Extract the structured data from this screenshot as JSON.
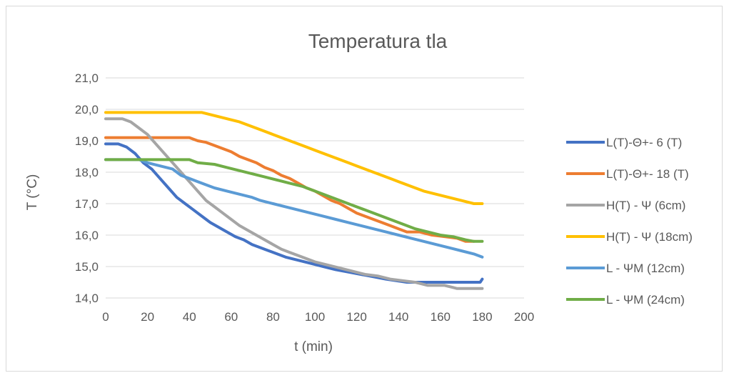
{
  "chart_data": {
    "type": "line",
    "title": "Temperatura tla",
    "xlabel": "t (min)",
    "ylabel": "T (°C)",
    "xlim": [
      0,
      200
    ],
    "ylim": [
      14.0,
      21.0
    ],
    "x_ticks": [
      "0",
      "20",
      "40",
      "60",
      "80",
      "100",
      "120",
      "140",
      "160",
      "180",
      "200"
    ],
    "y_ticks": [
      "14,0",
      "15,0",
      "16,0",
      "17,0",
      "18,0",
      "19,0",
      "20,0",
      "21,0"
    ],
    "grid": "horizontal",
    "legend_position": "right",
    "series": [
      {
        "name": "L(T)-Θ+- 6 (T)",
        "color": "#4472C4",
        "points": [
          [
            0,
            18.9
          ],
          [
            6,
            18.9
          ],
          [
            10,
            18.8
          ],
          [
            14,
            18.6
          ],
          [
            18,
            18.3
          ],
          [
            22,
            18.1
          ],
          [
            26,
            17.8
          ],
          [
            30,
            17.5
          ],
          [
            34,
            17.2
          ],
          [
            38,
            17.0
          ],
          [
            42,
            16.8
          ],
          [
            46,
            16.6
          ],
          [
            50,
            16.4
          ],
          [
            54,
            16.25
          ],
          [
            58,
            16.1
          ],
          [
            62,
            15.95
          ],
          [
            66,
            15.85
          ],
          [
            70,
            15.7
          ],
          [
            74,
            15.6
          ],
          [
            78,
            15.5
          ],
          [
            82,
            15.4
          ],
          [
            86,
            15.3
          ],
          [
            92,
            15.2
          ],
          [
            98,
            15.1
          ],
          [
            104,
            15.0
          ],
          [
            110,
            14.9
          ],
          [
            118,
            14.8
          ],
          [
            126,
            14.7
          ],
          [
            134,
            14.6
          ],
          [
            144,
            14.5
          ],
          [
            170,
            14.5
          ],
          [
            179,
            14.5
          ],
          [
            180,
            14.6
          ]
        ]
      },
      {
        "name": "L(T)-Θ+- 18 (T)",
        "color": "#ED7D31",
        "points": [
          [
            0,
            19.1
          ],
          [
            40,
            19.1
          ],
          [
            44,
            19.0
          ],
          [
            48,
            18.95
          ],
          [
            52,
            18.85
          ],
          [
            56,
            18.75
          ],
          [
            60,
            18.65
          ],
          [
            64,
            18.5
          ],
          [
            68,
            18.4
          ],
          [
            72,
            18.3
          ],
          [
            76,
            18.15
          ],
          [
            80,
            18.05
          ],
          [
            84,
            17.9
          ],
          [
            88,
            17.8
          ],
          [
            92,
            17.65
          ],
          [
            96,
            17.5
          ],
          [
            100,
            17.4
          ],
          [
            104,
            17.25
          ],
          [
            108,
            17.1
          ],
          [
            112,
            17.0
          ],
          [
            116,
            16.85
          ],
          [
            120,
            16.7
          ],
          [
            124,
            16.6
          ],
          [
            128,
            16.5
          ],
          [
            132,
            16.4
          ],
          [
            136,
            16.3
          ],
          [
            140,
            16.2
          ],
          [
            144,
            16.1
          ],
          [
            150,
            16.1
          ],
          [
            156,
            16.0
          ],
          [
            162,
            15.95
          ],
          [
            168,
            15.9
          ],
          [
            172,
            15.8
          ],
          [
            176,
            15.8
          ]
        ]
      },
      {
        "name": "H(T) - Ψ (6cm)",
        "color": "#A5A5A5",
        "points": [
          [
            0,
            19.7
          ],
          [
            8,
            19.7
          ],
          [
            12,
            19.6
          ],
          [
            16,
            19.4
          ],
          [
            20,
            19.2
          ],
          [
            24,
            18.9
          ],
          [
            28,
            18.6
          ],
          [
            32,
            18.3
          ],
          [
            36,
            18.0
          ],
          [
            40,
            17.7
          ],
          [
            44,
            17.4
          ],
          [
            48,
            17.1
          ],
          [
            52,
            16.9
          ],
          [
            56,
            16.7
          ],
          [
            60,
            16.5
          ],
          [
            64,
            16.3
          ],
          [
            68,
            16.15
          ],
          [
            72,
            16.0
          ],
          [
            76,
            15.85
          ],
          [
            80,
            15.7
          ],
          [
            84,
            15.55
          ],
          [
            88,
            15.45
          ],
          [
            92,
            15.35
          ],
          [
            96,
            15.25
          ],
          [
            100,
            15.15
          ],
          [
            106,
            15.05
          ],
          [
            112,
            14.95
          ],
          [
            118,
            14.85
          ],
          [
            124,
            14.75
          ],
          [
            130,
            14.7
          ],
          [
            136,
            14.6
          ],
          [
            142,
            14.55
          ],
          [
            148,
            14.5
          ],
          [
            154,
            14.4
          ],
          [
            162,
            14.4
          ],
          [
            168,
            14.3
          ],
          [
            180,
            14.3
          ]
        ]
      },
      {
        "name": "H(T) - Ψ (18cm)",
        "color": "#FFC000",
        "points": [
          [
            0,
            19.9
          ],
          [
            46,
            19.9
          ],
          [
            52,
            19.8
          ],
          [
            58,
            19.7
          ],
          [
            64,
            19.6
          ],
          [
            68,
            19.5
          ],
          [
            72,
            19.4
          ],
          [
            76,
            19.3
          ],
          [
            80,
            19.2
          ],
          [
            84,
            19.1
          ],
          [
            88,
            19.0
          ],
          [
            92,
            18.9
          ],
          [
            96,
            18.8
          ],
          [
            100,
            18.7
          ],
          [
            104,
            18.6
          ],
          [
            108,
            18.5
          ],
          [
            112,
            18.4
          ],
          [
            116,
            18.3
          ],
          [
            120,
            18.2
          ],
          [
            124,
            18.1
          ],
          [
            128,
            18.0
          ],
          [
            132,
            17.9
          ],
          [
            136,
            17.8
          ],
          [
            140,
            17.7
          ],
          [
            144,
            17.6
          ],
          [
            148,
            17.5
          ],
          [
            152,
            17.4
          ],
          [
            158,
            17.3
          ],
          [
            164,
            17.2
          ],
          [
            170,
            17.1
          ],
          [
            176,
            17.0
          ],
          [
            180,
            17.0
          ]
        ]
      },
      {
        "name": "L - ΨM (12cm)",
        "color": "#5B9BD5",
        "points": [
          [
            0,
            18.4
          ],
          [
            16,
            18.4
          ],
          [
            20,
            18.3
          ],
          [
            26,
            18.2
          ],
          [
            32,
            18.1
          ],
          [
            36,
            17.9
          ],
          [
            40,
            17.8
          ],
          [
            44,
            17.7
          ],
          [
            48,
            17.6
          ],
          [
            52,
            17.5
          ],
          [
            58,
            17.4
          ],
          [
            64,
            17.3
          ],
          [
            70,
            17.2
          ],
          [
            74,
            17.1
          ],
          [
            80,
            17.0
          ],
          [
            86,
            16.9
          ],
          [
            92,
            16.8
          ],
          [
            98,
            16.7
          ],
          [
            104,
            16.6
          ],
          [
            110,
            16.5
          ],
          [
            116,
            16.4
          ],
          [
            122,
            16.3
          ],
          [
            128,
            16.2
          ],
          [
            134,
            16.1
          ],
          [
            140,
            16.0
          ],
          [
            146,
            15.9
          ],
          [
            152,
            15.8
          ],
          [
            158,
            15.7
          ],
          [
            164,
            15.6
          ],
          [
            170,
            15.5
          ],
          [
            176,
            15.4
          ],
          [
            180,
            15.3
          ]
        ]
      },
      {
        "name": "L - ΨM (24cm)",
        "color": "#70AD47",
        "points": [
          [
            0,
            18.4
          ],
          [
            40,
            18.4
          ],
          [
            44,
            18.3
          ],
          [
            52,
            18.25
          ],
          [
            58,
            18.15
          ],
          [
            64,
            18.05
          ],
          [
            70,
            17.95
          ],
          [
            76,
            17.85
          ],
          [
            82,
            17.75
          ],
          [
            88,
            17.65
          ],
          [
            94,
            17.55
          ],
          [
            100,
            17.4
          ],
          [
            106,
            17.25
          ],
          [
            112,
            17.1
          ],
          [
            118,
            16.95
          ],
          [
            124,
            16.8
          ],
          [
            130,
            16.65
          ],
          [
            136,
            16.5
          ],
          [
            142,
            16.35
          ],
          [
            148,
            16.2
          ],
          [
            154,
            16.1
          ],
          [
            160,
            16.0
          ],
          [
            166,
            15.95
          ],
          [
            172,
            15.85
          ],
          [
            176,
            15.8
          ],
          [
            180,
            15.8
          ]
        ]
      }
    ]
  }
}
